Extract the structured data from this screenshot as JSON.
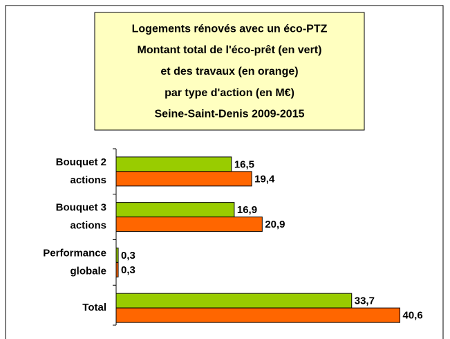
{
  "chart_data": {
    "type": "barh",
    "title": "Logements rénovés avec un éco-PTZ\nMontant total de l'éco-prêt (en vert)\net des travaux (en orange)\npar type d'action (en M€)\nSeine-Saint-Denis 2009-2015",
    "categories": [
      "Bouquet 2\nactions",
      "Bouquet 3\nactions",
      "Performance\nglobale",
      "Total"
    ],
    "series": [
      {
        "color": "#99cc00",
        "values": [
          16.5,
          16.9,
          0.3,
          33.7
        ],
        "value_labels": [
          "16,5",
          "16,9",
          "0,3",
          "33,7"
        ]
      },
      {
        "color": "#ff6600",
        "values": [
          19.4,
          20.9,
          0.3,
          40.6
        ],
        "value_labels": [
          "19,4",
          "20,9",
          "0,3",
          "40,6"
        ]
      }
    ],
    "xlim": [
      0,
      45
    ]
  }
}
